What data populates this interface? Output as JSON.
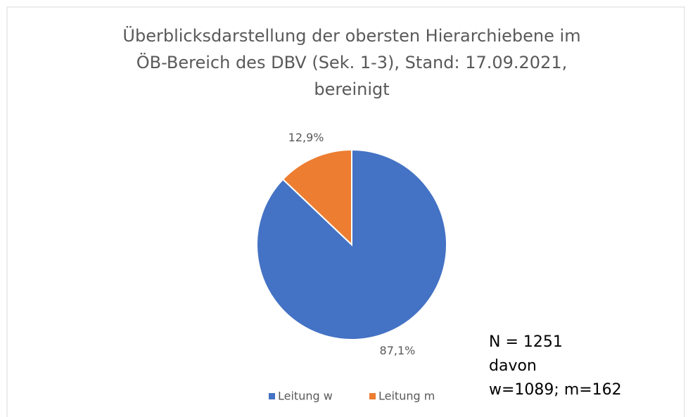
{
  "chart_data": {
    "type": "pie",
    "title": [
      "Überblicksdarstellung der obersten Hierarchiebene im",
      "ÖB-Bereich des DBV (Sek. 1-3), Stand: 17.09.2021,",
      "bereinigt"
    ],
    "categories": [
      "Leitung w",
      "Leitung m"
    ],
    "values": [
      87.1,
      12.9
    ],
    "value_labels": [
      "87,1%",
      "12,9%"
    ],
    "colors": [
      "#4472c4",
      "#ed7d31"
    ],
    "legend": "bottom",
    "annotation": [
      "N = 1251",
      "davon",
      "w=1089; m=162"
    ]
  }
}
